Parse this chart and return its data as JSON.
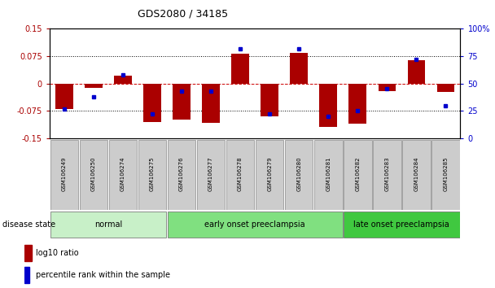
{
  "title": "GDS2080 / 34185",
  "samples": [
    "GSM106249",
    "GSM106250",
    "GSM106274",
    "GSM106275",
    "GSM106276",
    "GSM106277",
    "GSM106278",
    "GSM106279",
    "GSM106280",
    "GSM106281",
    "GSM106282",
    "GSM106283",
    "GSM106284",
    "GSM106285"
  ],
  "log10_ratio": [
    -0.07,
    -0.012,
    0.022,
    -0.105,
    -0.1,
    -0.107,
    0.082,
    -0.09,
    0.085,
    -0.118,
    -0.11,
    -0.02,
    0.065,
    -0.022
  ],
  "percentile_rank": [
    27,
    38,
    58,
    22,
    43,
    43,
    82,
    22,
    82,
    20,
    25,
    45,
    72,
    30
  ],
  "groups": [
    {
      "label": "normal",
      "start": 0,
      "end": 3,
      "color": "#c8f0c8"
    },
    {
      "label": "early onset preeclampsia",
      "start": 4,
      "end": 9,
      "color": "#80e080"
    },
    {
      "label": "late onset preeclampsia",
      "start": 10,
      "end": 13,
      "color": "#40c840"
    }
  ],
  "ylim_left": [
    -0.15,
    0.15
  ],
  "ylim_right": [
    0,
    100
  ],
  "yticks_left": [
    -0.15,
    -0.075,
    0,
    0.075,
    0.15
  ],
  "yticks_right": [
    0,
    25,
    50,
    75,
    100
  ],
  "bar_color": "#aa0000",
  "dot_color": "#0000cc",
  "zero_line_color": "#cc0000",
  "grid_color": "#000000",
  "bg_color": "#ffffff",
  "bar_width": 0.6,
  "title_fontsize": 9,
  "tick_fontsize": 7,
  "label_fontsize": 7,
  "sample_fontsize": 5
}
